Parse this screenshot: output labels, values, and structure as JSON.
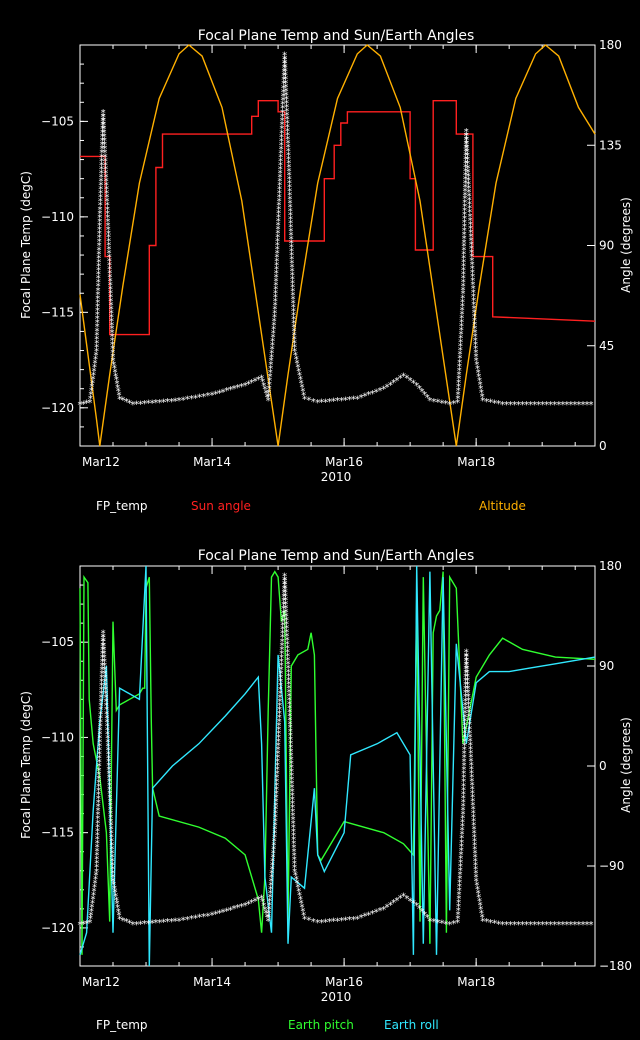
{
  "chart_data": [
    {
      "type": "line",
      "title": "Focal Plane Temp and Sun/Earth Angles",
      "xlabel": "2010",
      "ylabel_left": "Focal Plane Temp (degC)",
      "ylabel_right": "Angle (degrees)",
      "xlim": [
        0,
        7.8
      ],
      "xticks": [
        {
          "v": 0,
          "label": "Mar12"
        },
        {
          "v": 2,
          "label": "Mar14"
        },
        {
          "v": 4,
          "label": "Mar16"
        },
        {
          "v": 6,
          "label": "Mar18"
        }
      ],
      "ylim_left": [
        -122,
        -101
      ],
      "yticks_left": [
        {
          "v": -120,
          "label": "−120"
        },
        {
          "v": -115,
          "label": "−115"
        },
        {
          "v": -110,
          "label": "−110"
        },
        {
          "v": -105,
          "label": "−105"
        }
      ],
      "ylim_right": [
        0,
        180
      ],
      "yticks_right": [
        {
          "v": 0,
          "label": "0"
        },
        {
          "v": 45,
          "label": "45"
        },
        {
          "v": 90,
          "label": "90"
        },
        {
          "v": 135,
          "label": "135"
        },
        {
          "v": 180,
          "label": "180"
        }
      ],
      "legend": [
        {
          "name": "FP_temp",
          "color": "#ffffff"
        },
        {
          "name": "Sun angle",
          "color": "#ff2020"
        },
        {
          "name": "Altitude",
          "color": "#ffb000"
        }
      ],
      "fp_temp": [
        {
          "x": 0.0,
          "y": -119.8
        },
        {
          "x": 0.15,
          "y": -119.7
        },
        {
          "x": 0.25,
          "y": -117
        },
        {
          "x": 0.3,
          "y": -110
        },
        {
          "x": 0.35,
          "y": -104.5
        },
        {
          "x": 0.42,
          "y": -110
        },
        {
          "x": 0.5,
          "y": -117.5
        },
        {
          "x": 0.6,
          "y": -119.5
        },
        {
          "x": 0.8,
          "y": -119.8
        },
        {
          "x": 1.5,
          "y": -119.6
        },
        {
          "x": 2.0,
          "y": -119.3
        },
        {
          "x": 2.5,
          "y": -118.8
        },
        {
          "x": 2.75,
          "y": -118.4
        },
        {
          "x": 2.85,
          "y": -119.6
        },
        {
          "x": 2.95,
          "y": -115
        },
        {
          "x": 3.05,
          "y": -106
        },
        {
          "x": 3.1,
          "y": -101.5
        },
        {
          "x": 3.17,
          "y": -108
        },
        {
          "x": 3.25,
          "y": -117
        },
        {
          "x": 3.4,
          "y": -119.5
        },
        {
          "x": 3.6,
          "y": -119.7
        },
        {
          "x": 4.2,
          "y": -119.5
        },
        {
          "x": 4.6,
          "y": -119
        },
        {
          "x": 4.9,
          "y": -118.3
        },
        {
          "x": 5.1,
          "y": -118.8
        },
        {
          "x": 5.3,
          "y": -119.6
        },
        {
          "x": 5.6,
          "y": -119.8
        },
        {
          "x": 5.72,
          "y": -119.7
        },
        {
          "x": 5.8,
          "y": -114
        },
        {
          "x": 5.85,
          "y": -105.5
        },
        {
          "x": 5.92,
          "y": -111
        },
        {
          "x": 6.0,
          "y": -117.5
        },
        {
          "x": 6.1,
          "y": -119.6
        },
        {
          "x": 6.4,
          "y": -119.8
        },
        {
          "x": 7.8,
          "y": -119.8
        }
      ],
      "sun_angle": [
        {
          "x": 0.0,
          "y": 130
        },
        {
          "x": 0.38,
          "y": 130
        },
        {
          "x": 0.38,
          "y": 85
        },
        {
          "x": 0.45,
          "y": 85
        },
        {
          "x": 0.45,
          "y": 50
        },
        {
          "x": 1.05,
          "y": 50
        },
        {
          "x": 1.05,
          "y": 90
        },
        {
          "x": 1.15,
          "y": 90
        },
        {
          "x": 1.15,
          "y": 125
        },
        {
          "x": 1.25,
          "y": 125
        },
        {
          "x": 1.25,
          "y": 140
        },
        {
          "x": 2.6,
          "y": 140
        },
        {
          "x": 2.6,
          "y": 148
        },
        {
          "x": 2.7,
          "y": 148
        },
        {
          "x": 2.7,
          "y": 155
        },
        {
          "x": 3.0,
          "y": 155
        },
        {
          "x": 3.0,
          "y": 150
        },
        {
          "x": 3.1,
          "y": 150
        },
        {
          "x": 3.1,
          "y": 92
        },
        {
          "x": 3.7,
          "y": 92
        },
        {
          "x": 3.7,
          "y": 120
        },
        {
          "x": 3.85,
          "y": 120
        },
        {
          "x": 3.85,
          "y": 135
        },
        {
          "x": 3.95,
          "y": 135
        },
        {
          "x": 3.95,
          "y": 145
        },
        {
          "x": 4.05,
          "y": 145
        },
        {
          "x": 4.05,
          "y": 150
        },
        {
          "x": 5.0,
          "y": 150
        },
        {
          "x": 5.0,
          "y": 120
        },
        {
          "x": 5.08,
          "y": 120
        },
        {
          "x": 5.08,
          "y": 88
        },
        {
          "x": 5.35,
          "y": 88
        },
        {
          "x": 5.35,
          "y": 155
        },
        {
          "x": 5.7,
          "y": 155
        },
        {
          "x": 5.7,
          "y": 140
        },
        {
          "x": 5.95,
          "y": 140
        },
        {
          "x": 5.95,
          "y": 85
        },
        {
          "x": 6.25,
          "y": 85
        },
        {
          "x": 6.25,
          "y": 58
        },
        {
          "x": 7.8,
          "y": 56
        }
      ],
      "altitude": [
        {
          "x": 0.0,
          "y": 68
        },
        {
          "x": 0.08,
          "y": 50
        },
        {
          "x": 0.17,
          "y": 30
        },
        {
          "x": 0.25,
          "y": 12
        },
        {
          "x": 0.3,
          "y": 0
        },
        {
          "x": 0.45,
          "y": 32
        },
        {
          "x": 0.65,
          "y": 72
        },
        {
          "x": 0.9,
          "y": 118
        },
        {
          "x": 1.2,
          "y": 156
        },
        {
          "x": 1.5,
          "y": 176
        },
        {
          "x": 1.65,
          "y": 180
        },
        {
          "x": 1.85,
          "y": 175
        },
        {
          "x": 2.15,
          "y": 152
        },
        {
          "x": 2.45,
          "y": 110
        },
        {
          "x": 2.7,
          "y": 60
        },
        {
          "x": 2.9,
          "y": 20
        },
        {
          "x": 3.0,
          "y": 0
        },
        {
          "x": 3.15,
          "y": 32
        },
        {
          "x": 3.35,
          "y": 72
        },
        {
          "x": 3.6,
          "y": 118
        },
        {
          "x": 3.9,
          "y": 156
        },
        {
          "x": 4.2,
          "y": 176
        },
        {
          "x": 4.35,
          "y": 180
        },
        {
          "x": 4.55,
          "y": 175
        },
        {
          "x": 4.85,
          "y": 152
        },
        {
          "x": 5.15,
          "y": 110
        },
        {
          "x": 5.4,
          "y": 60
        },
        {
          "x": 5.6,
          "y": 20
        },
        {
          "x": 5.7,
          "y": 0
        },
        {
          "x": 5.85,
          "y": 32
        },
        {
          "x": 6.05,
          "y": 72
        },
        {
          "x": 6.3,
          "y": 118
        },
        {
          "x": 6.6,
          "y": 156
        },
        {
          "x": 6.9,
          "y": 176
        },
        {
          "x": 7.05,
          "y": 180
        },
        {
          "x": 7.25,
          "y": 175
        },
        {
          "x": 7.55,
          "y": 152
        },
        {
          "x": 7.8,
          "y": 140
        }
      ]
    },
    {
      "type": "line",
      "title": "Focal Plane Temp and Sun/Earth Angles",
      "xlabel": "2010",
      "ylabel_left": "Focal Plane Temp (degC)",
      "ylabel_right": "Angle (degrees)",
      "xlim": [
        0,
        7.8
      ],
      "xticks": [
        {
          "v": 0,
          "label": "Mar12"
        },
        {
          "v": 2,
          "label": "Mar14"
        },
        {
          "v": 4,
          "label": "Mar16"
        },
        {
          "v": 6,
          "label": "Mar18"
        }
      ],
      "ylim_left": [
        -122,
        -101
      ],
      "yticks_left": [
        {
          "v": -120,
          "label": "−120"
        },
        {
          "v": -115,
          "label": "−115"
        },
        {
          "v": -110,
          "label": "−110"
        },
        {
          "v": -105,
          "label": "−105"
        }
      ],
      "ylim_right": [
        -180,
        180
      ],
      "yticks_right": [
        {
          "v": -180,
          "label": "−180"
        },
        {
          "v": -90,
          "label": "−90"
        },
        {
          "v": 0,
          "label": "0"
        },
        {
          "v": 90,
          "label": "90"
        },
        {
          "v": 180,
          "label": "180"
        }
      ],
      "legend": [
        {
          "name": "FP_temp",
          "color": "#ffffff"
        },
        {
          "name": "Earth pitch",
          "color": "#30ff30"
        },
        {
          "name": "Earth roll",
          "color": "#30e8ff"
        }
      ],
      "fp_temp": [
        {
          "x": 0.0,
          "y": -119.8
        },
        {
          "x": 0.15,
          "y": -119.7
        },
        {
          "x": 0.25,
          "y": -117
        },
        {
          "x": 0.3,
          "y": -110
        },
        {
          "x": 0.35,
          "y": -104.5
        },
        {
          "x": 0.42,
          "y": -110
        },
        {
          "x": 0.5,
          "y": -117.5
        },
        {
          "x": 0.6,
          "y": -119.5
        },
        {
          "x": 0.8,
          "y": -119.8
        },
        {
          "x": 1.5,
          "y": -119.6
        },
        {
          "x": 2.0,
          "y": -119.3
        },
        {
          "x": 2.5,
          "y": -118.8
        },
        {
          "x": 2.75,
          "y": -118.4
        },
        {
          "x": 2.85,
          "y": -119.6
        },
        {
          "x": 2.95,
          "y": -115
        },
        {
          "x": 3.05,
          "y": -106
        },
        {
          "x": 3.1,
          "y": -101.5
        },
        {
          "x": 3.17,
          "y": -108
        },
        {
          "x": 3.25,
          "y": -117
        },
        {
          "x": 3.4,
          "y": -119.5
        },
        {
          "x": 3.6,
          "y": -119.7
        },
        {
          "x": 4.2,
          "y": -119.5
        },
        {
          "x": 4.6,
          "y": -119
        },
        {
          "x": 4.9,
          "y": -118.3
        },
        {
          "x": 5.1,
          "y": -118.8
        },
        {
          "x": 5.3,
          "y": -119.6
        },
        {
          "x": 5.6,
          "y": -119.8
        },
        {
          "x": 5.72,
          "y": -119.7
        },
        {
          "x": 5.8,
          "y": -114
        },
        {
          "x": 5.85,
          "y": -105.5
        },
        {
          "x": 5.92,
          "y": -111
        },
        {
          "x": 6.0,
          "y": -117.5
        },
        {
          "x": 6.1,
          "y": -119.6
        },
        {
          "x": 6.4,
          "y": -119.8
        },
        {
          "x": 7.8,
          "y": -119.8
        }
      ],
      "earth_pitch": [
        {
          "x": 0.0,
          "y": 160
        },
        {
          "x": 0.03,
          "y": -170
        },
        {
          "x": 0.06,
          "y": 170
        },
        {
          "x": 0.12,
          "y": 165
        },
        {
          "x": 0.14,
          "y": 60
        },
        {
          "x": 0.2,
          "y": 20
        },
        {
          "x": 0.3,
          "y": -10
        },
        {
          "x": 0.4,
          "y": -60
        },
        {
          "x": 0.45,
          "y": -140
        },
        {
          "x": 0.5,
          "y": 130
        },
        {
          "x": 0.55,
          "y": 50
        },
        {
          "x": 0.6,
          "y": 55
        },
        {
          "x": 0.9,
          "y": 65
        },
        {
          "x": 0.95,
          "y": 70
        },
        {
          "x": 0.98,
          "y": 70
        },
        {
          "x": 1.0,
          "y": 160
        },
        {
          "x": 1.05,
          "y": 170
        },
        {
          "x": 1.08,
          "y": 40
        },
        {
          "x": 1.1,
          "y": -20
        },
        {
          "x": 1.2,
          "y": -45
        },
        {
          "x": 1.8,
          "y": -55
        },
        {
          "x": 2.2,
          "y": -65
        },
        {
          "x": 2.5,
          "y": -80
        },
        {
          "x": 2.7,
          "y": -120
        },
        {
          "x": 2.75,
          "y": -150
        },
        {
          "x": 2.8,
          "y": -100
        },
        {
          "x": 2.85,
          "y": 50
        },
        {
          "x": 2.9,
          "y": 170
        },
        {
          "x": 2.95,
          "y": 175
        },
        {
          "x": 3.0,
          "y": 170
        },
        {
          "x": 3.05,
          "y": 130
        },
        {
          "x": 3.1,
          "y": 140
        },
        {
          "x": 3.15,
          "y": -140
        },
        {
          "x": 3.2,
          "y": 90
        },
        {
          "x": 3.3,
          "y": 100
        },
        {
          "x": 3.45,
          "y": 105
        },
        {
          "x": 3.5,
          "y": 120
        },
        {
          "x": 3.55,
          "y": 100
        },
        {
          "x": 3.6,
          "y": -80
        },
        {
          "x": 3.65,
          "y": -85
        },
        {
          "x": 4.0,
          "y": -50
        },
        {
          "x": 4.6,
          "y": -60
        },
        {
          "x": 4.9,
          "y": -70
        },
        {
          "x": 5.05,
          "y": -80
        },
        {
          "x": 5.1,
          "y": 150
        },
        {
          "x": 5.15,
          "y": -140
        },
        {
          "x": 5.2,
          "y": 170
        },
        {
          "x": 5.3,
          "y": -160
        },
        {
          "x": 5.35,
          "y": 120
        },
        {
          "x": 5.4,
          "y": 135
        },
        {
          "x": 5.45,
          "y": 140
        },
        {
          "x": 5.5,
          "y": 175
        },
        {
          "x": 5.55,
          "y": -150
        },
        {
          "x": 5.6,
          "y": 170
        },
        {
          "x": 5.7,
          "y": 160
        },
        {
          "x": 5.8,
          "y": 20
        },
        {
          "x": 5.9,
          "y": 50
        },
        {
          "x": 6.0,
          "y": 80
        },
        {
          "x": 6.2,
          "y": 100
        },
        {
          "x": 6.4,
          "y": 115
        },
        {
          "x": 6.7,
          "y": 105
        },
        {
          "x": 7.2,
          "y": 98
        },
        {
          "x": 7.8,
          "y": 96
        }
      ],
      "earth_roll": [
        {
          "x": 0.0,
          "y": -170
        },
        {
          "x": 0.1,
          "y": -150
        },
        {
          "x": 0.2,
          "y": -40
        },
        {
          "x": 0.3,
          "y": 40
        },
        {
          "x": 0.4,
          "y": 90
        },
        {
          "x": 0.5,
          "y": -150
        },
        {
          "x": 0.6,
          "y": 70
        },
        {
          "x": 0.9,
          "y": 60
        },
        {
          "x": 1.0,
          "y": 180
        },
        {
          "x": 1.05,
          "y": -180
        },
        {
          "x": 1.1,
          "y": -20
        },
        {
          "x": 1.4,
          "y": 0
        },
        {
          "x": 1.8,
          "y": 20
        },
        {
          "x": 2.2,
          "y": 45
        },
        {
          "x": 2.5,
          "y": 65
        },
        {
          "x": 2.7,
          "y": 80
        },
        {
          "x": 2.75,
          "y": 20
        },
        {
          "x": 2.8,
          "y": -100
        },
        {
          "x": 2.9,
          "y": -150
        },
        {
          "x": 3.0,
          "y": 100
        },
        {
          "x": 3.1,
          "y": 40
        },
        {
          "x": 3.15,
          "y": -160
        },
        {
          "x": 3.2,
          "y": -100
        },
        {
          "x": 3.4,
          "y": -110
        },
        {
          "x": 3.55,
          "y": -20
        },
        {
          "x": 3.6,
          "y": -80
        },
        {
          "x": 3.7,
          "y": -95
        },
        {
          "x": 4.0,
          "y": -60
        },
        {
          "x": 4.1,
          "y": 10
        },
        {
          "x": 4.5,
          "y": 20
        },
        {
          "x": 4.8,
          "y": 30
        },
        {
          "x": 5.0,
          "y": 10
        },
        {
          "x": 5.05,
          "y": -170
        },
        {
          "x": 5.1,
          "y": 180
        },
        {
          "x": 5.2,
          "y": -160
        },
        {
          "x": 5.3,
          "y": 175
        },
        {
          "x": 5.4,
          "y": -170
        },
        {
          "x": 5.5,
          "y": 170
        },
        {
          "x": 5.6,
          "y": -130
        },
        {
          "x": 5.7,
          "y": 110
        },
        {
          "x": 5.85,
          "y": 20
        },
        {
          "x": 6.0,
          "y": 75
        },
        {
          "x": 6.2,
          "y": 85
        },
        {
          "x": 6.5,
          "y": 85
        },
        {
          "x": 6.8,
          "y": 88
        },
        {
          "x": 7.2,
          "y": 92
        },
        {
          "x": 7.8,
          "y": 98
        }
      ]
    }
  ]
}
